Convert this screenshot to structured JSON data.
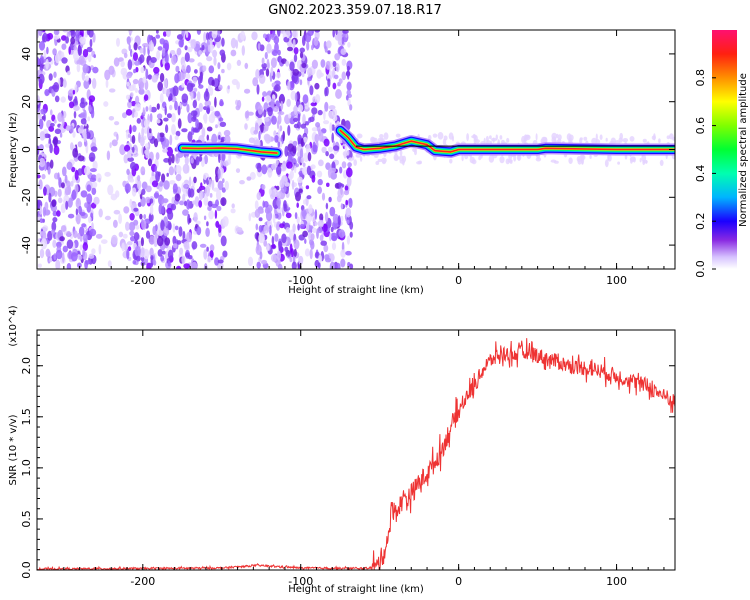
{
  "title": "GN02.2023.359.07.18.R17",
  "colors": {
    "snr_line": "#ee3333",
    "trace_center": "#ff2222",
    "frame": "#000000"
  },
  "chart_data": [
    {
      "type": "heatmap",
      "title": "GN02.2023.359.07.18.R17",
      "xlabel": "Height of straight line (km)",
      "ylabel": "Frequency (Hz)",
      "xlim": [
        -267,
        137
      ],
      "ylim": [
        -50,
        50
      ],
      "x_ticks": [
        -200,
        -100,
        0,
        100
      ],
      "x_tick_labels": [
        "-200",
        "-100",
        "0",
        "100"
      ],
      "y_ticks": [
        -40,
        -20,
        0,
        20,
        40
      ],
      "y_tick_labels": [
        "-40",
        "-20",
        "0",
        "20",
        "40"
      ],
      "colorbar": {
        "label": "Normalized spectral amplitude",
        "range": [
          0,
          1
        ],
        "ticks": [
          0.0,
          0.2,
          0.4,
          0.6,
          0.8
        ],
        "tick_labels": [
          "0.0",
          "0.2",
          "0.4",
          "0.6",
          "0.8"
        ]
      },
      "regions": [
        {
          "x": [
            -267,
            -230
          ],
          "pattern": "dense noise"
        },
        {
          "x": [
            -230,
            -210
          ],
          "pattern": "sparse noise"
        },
        {
          "x": [
            -210,
            -148
          ],
          "pattern": "dense noise"
        },
        {
          "x": [
            -148,
            -128
          ],
          "pattern": "sparse noise"
        },
        {
          "x": [
            -128,
            -68
          ],
          "pattern": "dense noise"
        },
        {
          "x": [
            -68,
            137
          ],
          "pattern": "narrow tone near 0 Hz"
        }
      ],
      "tone_trace": [
        {
          "x": -175,
          "y": 0.6
        },
        {
          "x": -165,
          "y": 0.4
        },
        {
          "x": -150,
          "y": 0.6
        },
        {
          "x": -140,
          "y": 0.3
        },
        {
          "x": -125,
          "y": -1.0
        },
        {
          "x": -115,
          "y": -1.5
        },
        {
          "x": -75,
          "y": 8
        },
        {
          "x": -70,
          "y": 5
        },
        {
          "x": -65,
          "y": 1
        },
        {
          "x": -60,
          "y": 0
        },
        {
          "x": -50,
          "y": 0.5
        },
        {
          "x": -40,
          "y": 1.5
        },
        {
          "x": -30,
          "y": 3.5
        },
        {
          "x": -20,
          "y": 2
        },
        {
          "x": -15,
          "y": -0.5
        },
        {
          "x": -5,
          "y": -1
        },
        {
          "x": 0,
          "y": 0
        },
        {
          "x": 50,
          "y": 0
        },
        {
          "x": 55,
          "y": 0.5
        },
        {
          "x": 100,
          "y": 0
        },
        {
          "x": 137,
          "y": 0
        }
      ]
    },
    {
      "type": "line",
      "xlabel": "Height of straight line (km)",
      "ylabel": "SNR (10 * v/v)",
      "y_multiplier": "(x10^4)",
      "xlim": [
        -267,
        137
      ],
      "ylim": [
        0,
        23500
      ],
      "x_ticks": [
        -200,
        -100,
        0,
        100
      ],
      "x_tick_labels": [
        "-200",
        "-100",
        "0",
        "100"
      ],
      "y_ticks": [
        0,
        5000,
        10000,
        15000,
        20000
      ],
      "y_tick_labels": [
        "0.0",
        "0.5",
        "1.0",
        "1.5",
        "2.0"
      ],
      "series": [
        {
          "x": [
            -267,
            -200,
            -150,
            -127,
            -100,
            -60,
            -52,
            -48,
            -45,
            -42,
            -40,
            -35,
            -30,
            -25,
            -20,
            -15,
            -10,
            -5,
            0,
            5,
            10,
            15,
            20,
            25,
            30,
            35,
            40,
            45,
            50,
            60,
            70,
            80,
            90,
            100,
            110,
            120,
            130,
            137
          ],
          "y": [
            100,
            150,
            200,
            450,
            200,
            150,
            300,
            1500,
            3000,
            6000,
            5500,
            7000,
            7500,
            8500,
            9500,
            10500,
            12000,
            14000,
            15500,
            17000,
            18000,
            19500,
            20500,
            21000,
            21200,
            21100,
            21200,
            21500,
            21000,
            20500,
            20000,
            19800,
            19500,
            19000,
            18500,
            18000,
            17000,
            16500
          ]
        }
      ]
    }
  ]
}
